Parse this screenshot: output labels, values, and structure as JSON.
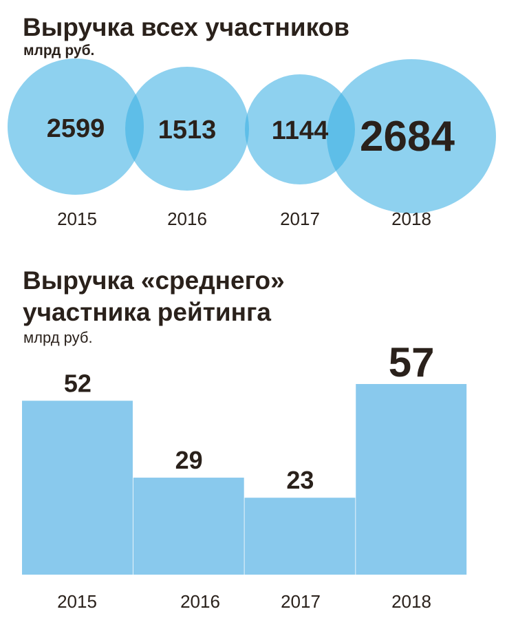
{
  "chart_data": [
    {
      "type": "bubble",
      "title": "Выручка всех участников",
      "subtitle": "млрд руб.",
      "categories": [
        "2015",
        "2016",
        "2017",
        "2018"
      ],
      "values": [
        2599,
        1513,
        1144,
        2684
      ],
      "labels": [
        "2599",
        "1513",
        "1144",
        "2684"
      ],
      "color": "#3db0e3",
      "overlap_color": "#3db0e3"
    },
    {
      "type": "bar",
      "title_lines": [
        "Выручка «среднего»",
        "участника рейтинга"
      ],
      "subtitle": "млрд руб.",
      "categories": [
        "2015",
        "2016",
        "2017",
        "2018"
      ],
      "values": [
        52,
        29,
        23,
        57
      ],
      "labels": [
        "52",
        "29",
        "23",
        "57"
      ],
      "ylim": [
        0,
        57
      ],
      "grid": false,
      "color": "#89c9ed"
    }
  ]
}
